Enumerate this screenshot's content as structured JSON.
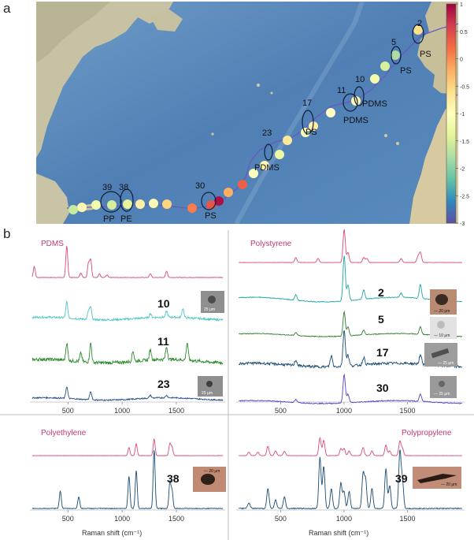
{
  "panels": {
    "a": "a",
    "b": "b"
  },
  "map": {
    "colorbar": {
      "ticks": [
        "1",
        "0.5",
        "0",
        "-0.5",
        "-1",
        "-1.5",
        "-2",
        "-2.5",
        "-3"
      ],
      "colors": [
        "#9e0142",
        "#d53e4f",
        "#f46d43",
        "#fdae61",
        "#fee08b",
        "#ffffbf",
        "#e6f598",
        "#abdda4",
        "#66c2a5",
        "#3288bd",
        "#5e4fa2"
      ],
      "range": [
        -3,
        1
      ]
    },
    "stations": [
      {
        "value": -0.6
      },
      {
        "value": -1.8
      },
      {
        "value": -1.5
      },
      {
        "value": -1.2
      },
      {
        "value": -0.9
      },
      {
        "value": -1.0
      },
      {
        "value": -0.8
      },
      {
        "value": -1.1
      },
      {
        "value": -0.7
      },
      {
        "value": -1.3
      },
      {
        "value": -0.9
      },
      {
        "value": -1.0
      },
      {
        "value": 0.3
      },
      {
        "value": -0.2
      },
      {
        "value": 0.9
      },
      {
        "value": 0.4
      },
      {
        "value": 0.1
      },
      {
        "value": -0.5
      },
      {
        "value": -0.9
      },
      {
        "value": -0.8
      },
      {
        "value": -1.4
      },
      {
        "value": -1.5
      },
      {
        "value": -1.2
      },
      {
        "value": -0.9
      },
      {
        "value": -1.6
      }
    ],
    "markers": [
      {
        "id": "2",
        "polymer": "PS"
      },
      {
        "id": "5",
        "polymer": "PS"
      },
      {
        "id": "10",
        "polymer": "PDMS"
      },
      {
        "id": "11",
        "polymer": "PDMS"
      },
      {
        "id": "17",
        "polymer": "PS"
      },
      {
        "id": "23",
        "polymer": "PDMS"
      },
      {
        "id": "30",
        "polymer": "PS"
      },
      {
        "id": "38",
        "polymer": "PE"
      },
      {
        "id": "39",
        "polymer": "PP"
      }
    ]
  },
  "spectra": {
    "xlabel": "Raman shift (cm⁻¹)",
    "ticks": [
      "500",
      "1000",
      "1500"
    ],
    "scale_labels": {
      "s25": "25 μm",
      "s20": "— 20 μm",
      "s10": "— 10 μm",
      "s25d": "— 25 μm",
      "s20b": "— 20 μm"
    },
    "panels": [
      {
        "title": "PDMS",
        "samples": [
          "10",
          "11",
          "23"
        ]
      },
      {
        "title": "Polystyrene",
        "samples": [
          "2",
          "5",
          "17",
          "30"
        ]
      },
      {
        "title": "Polyethylene",
        "samples": [
          "38"
        ]
      },
      {
        "title": "Polypropylene",
        "samples": [
          "39"
        ]
      }
    ]
  },
  "chart_data": [
    {
      "type": "line",
      "title": "PDMS",
      "xlabel": "Raman shift (cm⁻¹)",
      "xlim": [
        150,
        1950
      ],
      "series": [
        {
          "name": "PDMS reference",
          "color": "#d9497b",
          "peaks": [
            [
              190,
              0.35
            ],
            [
              490,
              1.0
            ],
            [
              620,
              0.15
            ],
            [
              690,
              0.45
            ],
            [
              710,
              0.55
            ],
            [
              790,
              0.12
            ],
            [
              860,
              0.08
            ],
            [
              1260,
              0.12
            ],
            [
              1410,
              0.2
            ]
          ]
        },
        {
          "name": "10",
          "color": "#4fc7c4",
          "peaks": [
            [
              490,
              0.6
            ],
            [
              690,
              0.3
            ],
            [
              710,
              0.45
            ],
            [
              1260,
              0.15
            ],
            [
              1410,
              0.22
            ],
            [
              1560,
              0.35
            ]
          ]
        },
        {
          "name": "11",
          "color": "#2e8b2e",
          "peaks": [
            [
              490,
              0.5
            ],
            [
              620,
              0.25
            ],
            [
              710,
              0.55
            ],
            [
              1100,
              0.3
            ],
            [
              1260,
              0.3
            ],
            [
              1410,
              0.35
            ],
            [
              1600,
              0.5
            ]
          ]
        },
        {
          "name": "23",
          "color": "#2a4e8a",
          "peaks": [
            [
              490,
              0.5
            ],
            [
              710,
              0.35
            ],
            [
              1260,
              0.12
            ],
            [
              1410,
              0.1
            ]
          ]
        }
      ]
    },
    {
      "type": "line",
      "title": "Polystyrene",
      "xlabel": "Raman shift (cm⁻¹)",
      "xlim": [
        150,
        1950
      ],
      "series": [
        {
          "name": "Polystyrene reference",
          "color": "#d9497b",
          "peaks": [
            [
              620,
              0.15
            ],
            [
              795,
              0.12
            ],
            [
              1001,
              1.0
            ],
            [
              1031,
              0.3
            ],
            [
              1155,
              0.15
            ],
            [
              1180,
              0.12
            ],
            [
              1450,
              0.12
            ],
            [
              1583,
              0.18
            ],
            [
              1602,
              0.3
            ]
          ]
        },
        {
          "name": "2",
          "color": "#1ea6a0",
          "peaks": [
            [
              620,
              0.12
            ],
            [
              1001,
              1.0
            ],
            [
              1031,
              0.35
            ],
            [
              1155,
              0.2
            ],
            [
              1450,
              0.1
            ],
            [
              1602,
              0.3
            ]
          ]
        },
        {
          "name": "5",
          "color": "#2e7d2e",
          "peaks": [
            [
              620,
              0.1
            ],
            [
              1001,
              0.8
            ],
            [
              1031,
              0.3
            ],
            [
              1155,
              0.15
            ],
            [
              1602,
              0.25
            ]
          ]
        },
        {
          "name": "17",
          "color": "#1a4a73",
          "peaks": [
            [
              620,
              0.15
            ],
            [
              900,
              0.3
            ],
            [
              1001,
              1.0
            ],
            [
              1031,
              0.3
            ],
            [
              1155,
              0.2
            ],
            [
              1602,
              0.25
            ]
          ]
        },
        {
          "name": "30",
          "color": "#5b3fc4",
          "peaks": [
            [
              620,
              0.1
            ],
            [
              1001,
              1.0
            ],
            [
              1031,
              0.3
            ],
            [
              1602,
              0.25
            ]
          ]
        }
      ]
    },
    {
      "type": "line",
      "title": "Polyethylene",
      "xlabel": "Raman shift (cm⁻¹)",
      "xlim": [
        150,
        1950
      ],
      "series": [
        {
          "name": "Polyethylene reference",
          "color": "#d9497b",
          "peaks": [
            [
              1063,
              0.35
            ],
            [
              1130,
              0.5
            ],
            [
              1295,
              0.7
            ],
            [
              1440,
              0.5
            ],
            [
              1460,
              0.35
            ]
          ]
        },
        {
          "name": "38",
          "color": "#1a4a73",
          "peaks": [
            [
              430,
              0.3
            ],
            [
              600,
              0.2
            ],
            [
              1063,
              0.55
            ],
            [
              1130,
              0.65
            ],
            [
              1295,
              1.0
            ],
            [
              1440,
              0.45
            ],
            [
              1460,
              0.3
            ]
          ]
        }
      ]
    },
    {
      "type": "line",
      "title": "Polypropylene",
      "xlabel": "Raman shift (cm⁻¹)",
      "xlim": [
        150,
        1950
      ],
      "series": [
        {
          "name": "Polypropylene reference",
          "color": "#d9497b",
          "peaks": [
            [
              250,
              0.15
            ],
            [
              320,
              0.15
            ],
            [
              400,
              0.4
            ],
            [
              460,
              0.2
            ],
            [
              530,
              0.18
            ],
            [
              810,
              0.75
            ],
            [
              840,
              0.65
            ],
            [
              975,
              0.3
            ],
            [
              1000,
              0.3
            ],
            [
              1040,
              0.2
            ],
            [
              1150,
              0.35
            ],
            [
              1220,
              0.2
            ],
            [
              1330,
              0.45
            ],
            [
              1360,
              0.2
            ],
            [
              1440,
              0.6
            ],
            [
              1460,
              0.3
            ]
          ]
        },
        {
          "name": "39",
          "color": "#1a4a73",
          "peaks": [
            [
              250,
              0.1
            ],
            [
              400,
              0.35
            ],
            [
              460,
              0.15
            ],
            [
              530,
              0.2
            ],
            [
              810,
              0.9
            ],
            [
              840,
              0.75
            ],
            [
              900,
              0.35
            ],
            [
              975,
              0.45
            ],
            [
              1000,
              0.3
            ],
            [
              1040,
              0.3
            ],
            [
              1150,
              0.6
            ],
            [
              1170,
              0.5
            ],
            [
              1220,
              0.35
            ],
            [
              1330,
              0.7
            ],
            [
              1360,
              0.4
            ],
            [
              1440,
              1.0
            ],
            [
              1460,
              0.5
            ]
          ]
        }
      ]
    }
  ]
}
